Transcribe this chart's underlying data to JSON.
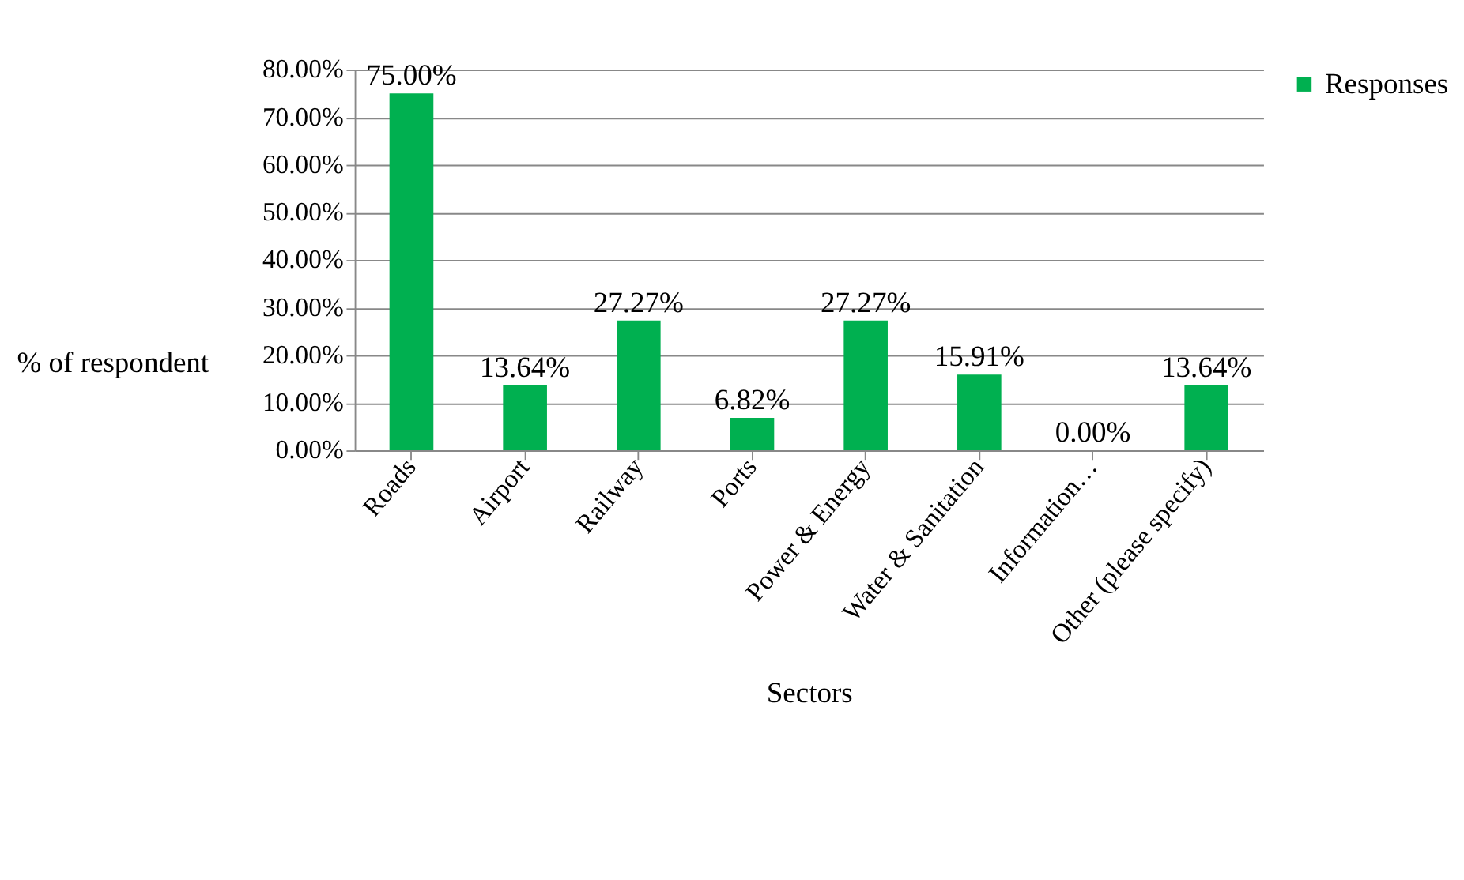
{
  "chart_data": {
    "type": "bar",
    "xlabel": "Sectors",
    "ylabel": "% of respondent",
    "categories": [
      "Roads",
      "Airport",
      "Railway",
      "Ports",
      "Power & Energy",
      "Water & Sanitation",
      "Information…",
      "Other (please specify)"
    ],
    "series": [
      {
        "name": "Responses",
        "color": "#00b050",
        "values": [
          75.0,
          13.64,
          27.27,
          6.82,
          27.27,
          15.91,
          0.0,
          13.64
        ],
        "value_labels": [
          "75.00%",
          "13.64%",
          "27.27%",
          "6.82%",
          "27.27%",
          "15.91%",
          "0.00%",
          "13.64%"
        ]
      }
    ],
    "ylim": [
      0,
      80
    ],
    "yticks": [
      {
        "value": 0,
        "label": "0.00%"
      },
      {
        "value": 10,
        "label": "10.00%"
      },
      {
        "value": 20,
        "label": "20.00%"
      },
      {
        "value": 30,
        "label": "30.00%"
      },
      {
        "value": 40,
        "label": "40.00%"
      },
      {
        "value": 50,
        "label": "50.00%"
      },
      {
        "value": 60,
        "label": "60.00%"
      },
      {
        "value": 70,
        "label": "70.00%"
      },
      {
        "value": 80,
        "label": "80.00%"
      }
    ],
    "grid": "y",
    "legend": "right"
  }
}
